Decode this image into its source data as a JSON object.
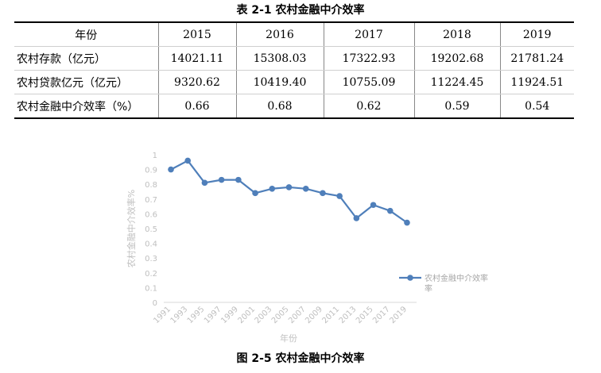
{
  "table": {
    "title": "表 2-1  农村金融中介效率",
    "header": [
      "年份",
      "2015",
      "2016",
      "2017",
      "2018",
      "2019"
    ],
    "rows": [
      [
        "农村存款（亿元）",
        "14021.11",
        "15308.03",
        "17322.93",
        "19202.68",
        "21781.24"
      ],
      [
        "农村贷款亿元（亿元）",
        "9320.62",
        "10419.40",
        "10755.09",
        "11224.45",
        "11924.51"
      ],
      [
        "农村金融中介效率（%）",
        "0.66",
        "0.68",
        "0.62",
        "0.59",
        "0.54"
      ]
    ]
  },
  "chart_data": {
    "type": "line",
    "title": "",
    "xlabel": "年份",
    "ylabel": "农村金融中介效率%",
    "x": [
      "1991",
      "1993",
      "1995",
      "1997",
      "1999",
      "2001",
      "2003",
      "2005",
      "2007",
      "2009",
      "2011",
      "2013",
      "2015",
      "2017",
      "2019"
    ],
    "series": [
      {
        "name": "农村金融中介效率",
        "values": [
          0.9,
          0.96,
          0.81,
          0.83,
          0.83,
          0.74,
          0.77,
          0.78,
          0.77,
          0.74,
          0.72,
          0.57,
          0.66,
          0.62,
          0.54
        ]
      }
    ],
    "yticks": [
      "0",
      "0.1",
      "0.2",
      "0.3",
      "0.4",
      "0.5",
      "0.6",
      "0.7",
      "0.8",
      "0.9",
      "1"
    ],
    "ylim": [
      0,
      1
    ],
    "grid": false,
    "legend": "right",
    "line_color": "#4f7fba",
    "axis_text_color": "#bfbfbf"
  },
  "figure": {
    "caption": "图 2-5  农村金融中介效率"
  }
}
